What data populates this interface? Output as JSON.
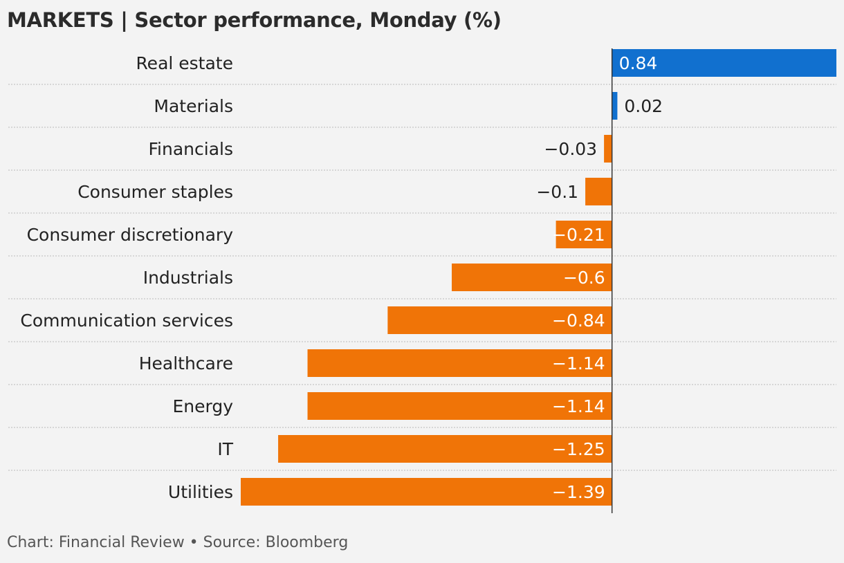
{
  "title": "MARKETS | Sector performance, Monday (%)",
  "footer": "Chart: Financial Review • Source: Bloomberg",
  "colors": {
    "positive": "#1170cf",
    "negative": "#f07407",
    "axis": "#333333",
    "gridline": "#c4c4c4"
  },
  "chart_data": {
    "type": "bar",
    "orientation": "horizontal",
    "categories": [
      "Real estate",
      "Materials",
      "Financials",
      "Consumer staples",
      "Consumer discretionary",
      "Industrials",
      "Communication services",
      "Healthcare",
      "Energy",
      "IT",
      "Utilities"
    ],
    "values": [
      0.84,
      0.02,
      -0.03,
      -0.1,
      -0.21,
      -0.6,
      -0.84,
      -1.14,
      -1.14,
      -1.25,
      -1.39
    ],
    "labels": [
      "0.84",
      "0.02",
      "−0.03",
      "−0.1",
      "−0.21",
      "−0.6",
      "−0.84",
      "−1.14",
      "−1.14",
      "−1.25",
      "−1.39"
    ],
    "xlim": [
      -1.39,
      0.84
    ],
    "grid": false,
    "legend": "none"
  }
}
